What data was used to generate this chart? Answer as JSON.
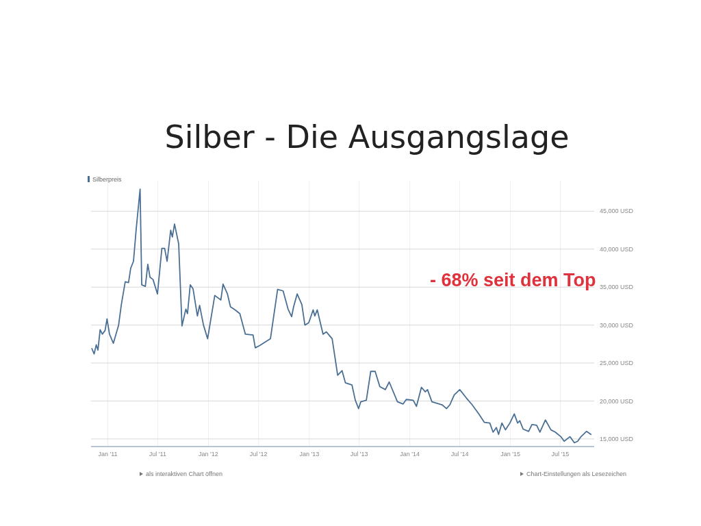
{
  "chart_data": {
    "type": "line",
    "title": "Silber - Die Ausgangslage",
    "x": [
      "2010-11-04",
      "2010-11-12",
      "2010-11-20",
      "2010-11-26",
      "2010-12-04",
      "2010-12-12",
      "2010-12-22",
      "2010-12-29",
      "2011-01-07",
      "2011-01-21",
      "2011-02-09",
      "2011-02-19",
      "2011-03-05",
      "2011-03-17",
      "2011-03-25",
      "2011-04-04",
      "2011-04-14",
      "2011-04-28",
      "2011-05-04",
      "2011-05-17",
      "2011-05-26",
      "2011-06-03",
      "2011-06-14",
      "2011-06-30",
      "2011-07-16",
      "2011-07-26",
      "2011-08-04",
      "2011-08-17",
      "2011-08-23",
      "2011-08-31",
      "2011-09-15",
      "2011-09-27",
      "2011-10-11",
      "2011-10-17",
      "2011-10-27",
      "2011-11-06",
      "2011-11-22",
      "2011-11-30",
      "2011-12-14",
      "2011-12-29",
      "2012-01-24",
      "2012-02-15",
      "2012-02-23",
      "2012-03-10",
      "2012-03-21",
      "2012-04-07",
      "2012-04-24",
      "2012-05-14",
      "2012-06-11",
      "2012-06-19",
      "2012-07-05",
      "2012-08-13",
      "2012-09-08",
      "2012-09-28",
      "2012-10-16",
      "2012-10-29",
      "2012-11-05",
      "2012-11-18",
      "2012-12-05",
      "2012-12-16",
      "2012-12-30",
      "2013-01-15",
      "2013-01-21",
      "2013-01-30",
      "2013-02-20",
      "2013-03-04",
      "2013-03-25",
      "2013-04-14",
      "2013-04-30",
      "2013-05-12",
      "2013-06-05",
      "2013-06-17",
      "2013-06-29",
      "2013-07-07",
      "2013-07-27",
      "2013-08-12",
      "2013-08-28",
      "2013-09-14",
      "2013-10-04",
      "2013-10-18",
      "2013-11-17",
      "2013-12-07",
      "2013-12-19",
      "2014-01-13",
      "2014-01-25",
      "2014-02-12",
      "2014-02-26",
      "2014-03-06",
      "2014-03-22",
      "2014-04-28",
      "2014-05-14",
      "2014-05-26",
      "2014-06-11",
      "2014-07-01",
      "2014-07-25",
      "2014-08-15",
      "2014-09-08",
      "2014-09-28",
      "2014-10-18",
      "2014-10-30",
      "2014-11-11",
      "2014-11-19",
      "2014-12-01",
      "2014-12-14",
      "2014-12-30",
      "2015-01-15",
      "2015-01-27",
      "2015-02-04",
      "2015-02-16",
      "2015-03-08",
      "2015-03-20",
      "2015-04-06",
      "2015-04-18",
      "2015-05-08",
      "2015-05-28",
      "2015-06-13",
      "2015-07-03",
      "2015-07-15",
      "2015-08-05",
      "2015-08-21",
      "2015-09-02",
      "2015-09-14",
      "2015-10-04",
      "2015-10-20"
    ],
    "series": [
      {
        "name": "Silberpreis",
        "color": "#4a6f94",
        "values": [
          26900,
          26200,
          27400,
          26700,
          29400,
          28800,
          29300,
          30800,
          28800,
          27600,
          30000,
          32700,
          35700,
          35600,
          37500,
          38400,
          42700,
          47900,
          35300,
          35100,
          38000,
          36300,
          36000,
          34100,
          40100,
          40100,
          38400,
          42500,
          41600,
          43300,
          40700,
          29900,
          32100,
          31500,
          35300,
          34800,
          31200,
          32600,
          30000,
          28200,
          33900,
          33300,
          35400,
          34100,
          32400,
          32000,
          31500,
          28800,
          28700,
          27000,
          27300,
          28200,
          34700,
          34500,
          32100,
          31100,
          32400,
          34100,
          32700,
          30000,
          30300,
          32000,
          31200,
          32000,
          28800,
          29100,
          28200,
          23400,
          24000,
          22400,
          22100,
          20100,
          19000,
          19900,
          20100,
          23900,
          23900,
          21900,
          21500,
          22500,
          19900,
          19600,
          20200,
          20100,
          19300,
          21800,
          21200,
          21500,
          19900,
          19500,
          19000,
          19500,
          20800,
          21500,
          20400,
          19500,
          18300,
          17200,
          17100,
          15900,
          16500,
          15600,
          17100,
          16200,
          17100,
          18300,
          17100,
          17400,
          16300,
          16000,
          16900,
          16800,
          15900,
          17500,
          16200,
          15900,
          15300,
          14700,
          15300,
          14500,
          14700,
          15300,
          16000,
          15600
        ]
      }
    ],
    "xlim": [
      "2010-11-01",
      "2015-11-01"
    ],
    "ylim": [
      14000,
      49000
    ],
    "xticks": [
      {
        "value": "2011-01-01",
        "label": "Jan '11"
      },
      {
        "value": "2011-07-01",
        "label": "Jul '11"
      },
      {
        "value": "2012-01-01",
        "label": "Jan '12"
      },
      {
        "value": "2012-07-01",
        "label": "Jul '12"
      },
      {
        "value": "2013-01-01",
        "label": "Jan '13"
      },
      {
        "value": "2013-07-01",
        "label": "Jul '13"
      },
      {
        "value": "2014-01-01",
        "label": "Jan '14"
      },
      {
        "value": "2014-07-01",
        "label": "Jul '14"
      },
      {
        "value": "2015-01-01",
        "label": "Jan '15"
      },
      {
        "value": "2015-07-01",
        "label": "Jul '15"
      }
    ],
    "yticks": [
      {
        "value": 15000,
        "label": "15,000 USD"
      },
      {
        "value": 20000,
        "label": "20,000 USD"
      },
      {
        "value": 25000,
        "label": "25,000 USD"
      },
      {
        "value": 30000,
        "label": "30,000 USD"
      },
      {
        "value": 35000,
        "label": "35,000 USD"
      },
      {
        "value": 40000,
        "label": "40,000 USD"
      },
      {
        "value": 45000,
        "label": "45,000 USD"
      }
    ],
    "grid": true,
    "legend": "top left",
    "annotations": [
      "- 68% seit dem Top",
      "als interaktiven Chart öffnen",
      "Chart-Einstellungen als Lesezeichen"
    ]
  }
}
